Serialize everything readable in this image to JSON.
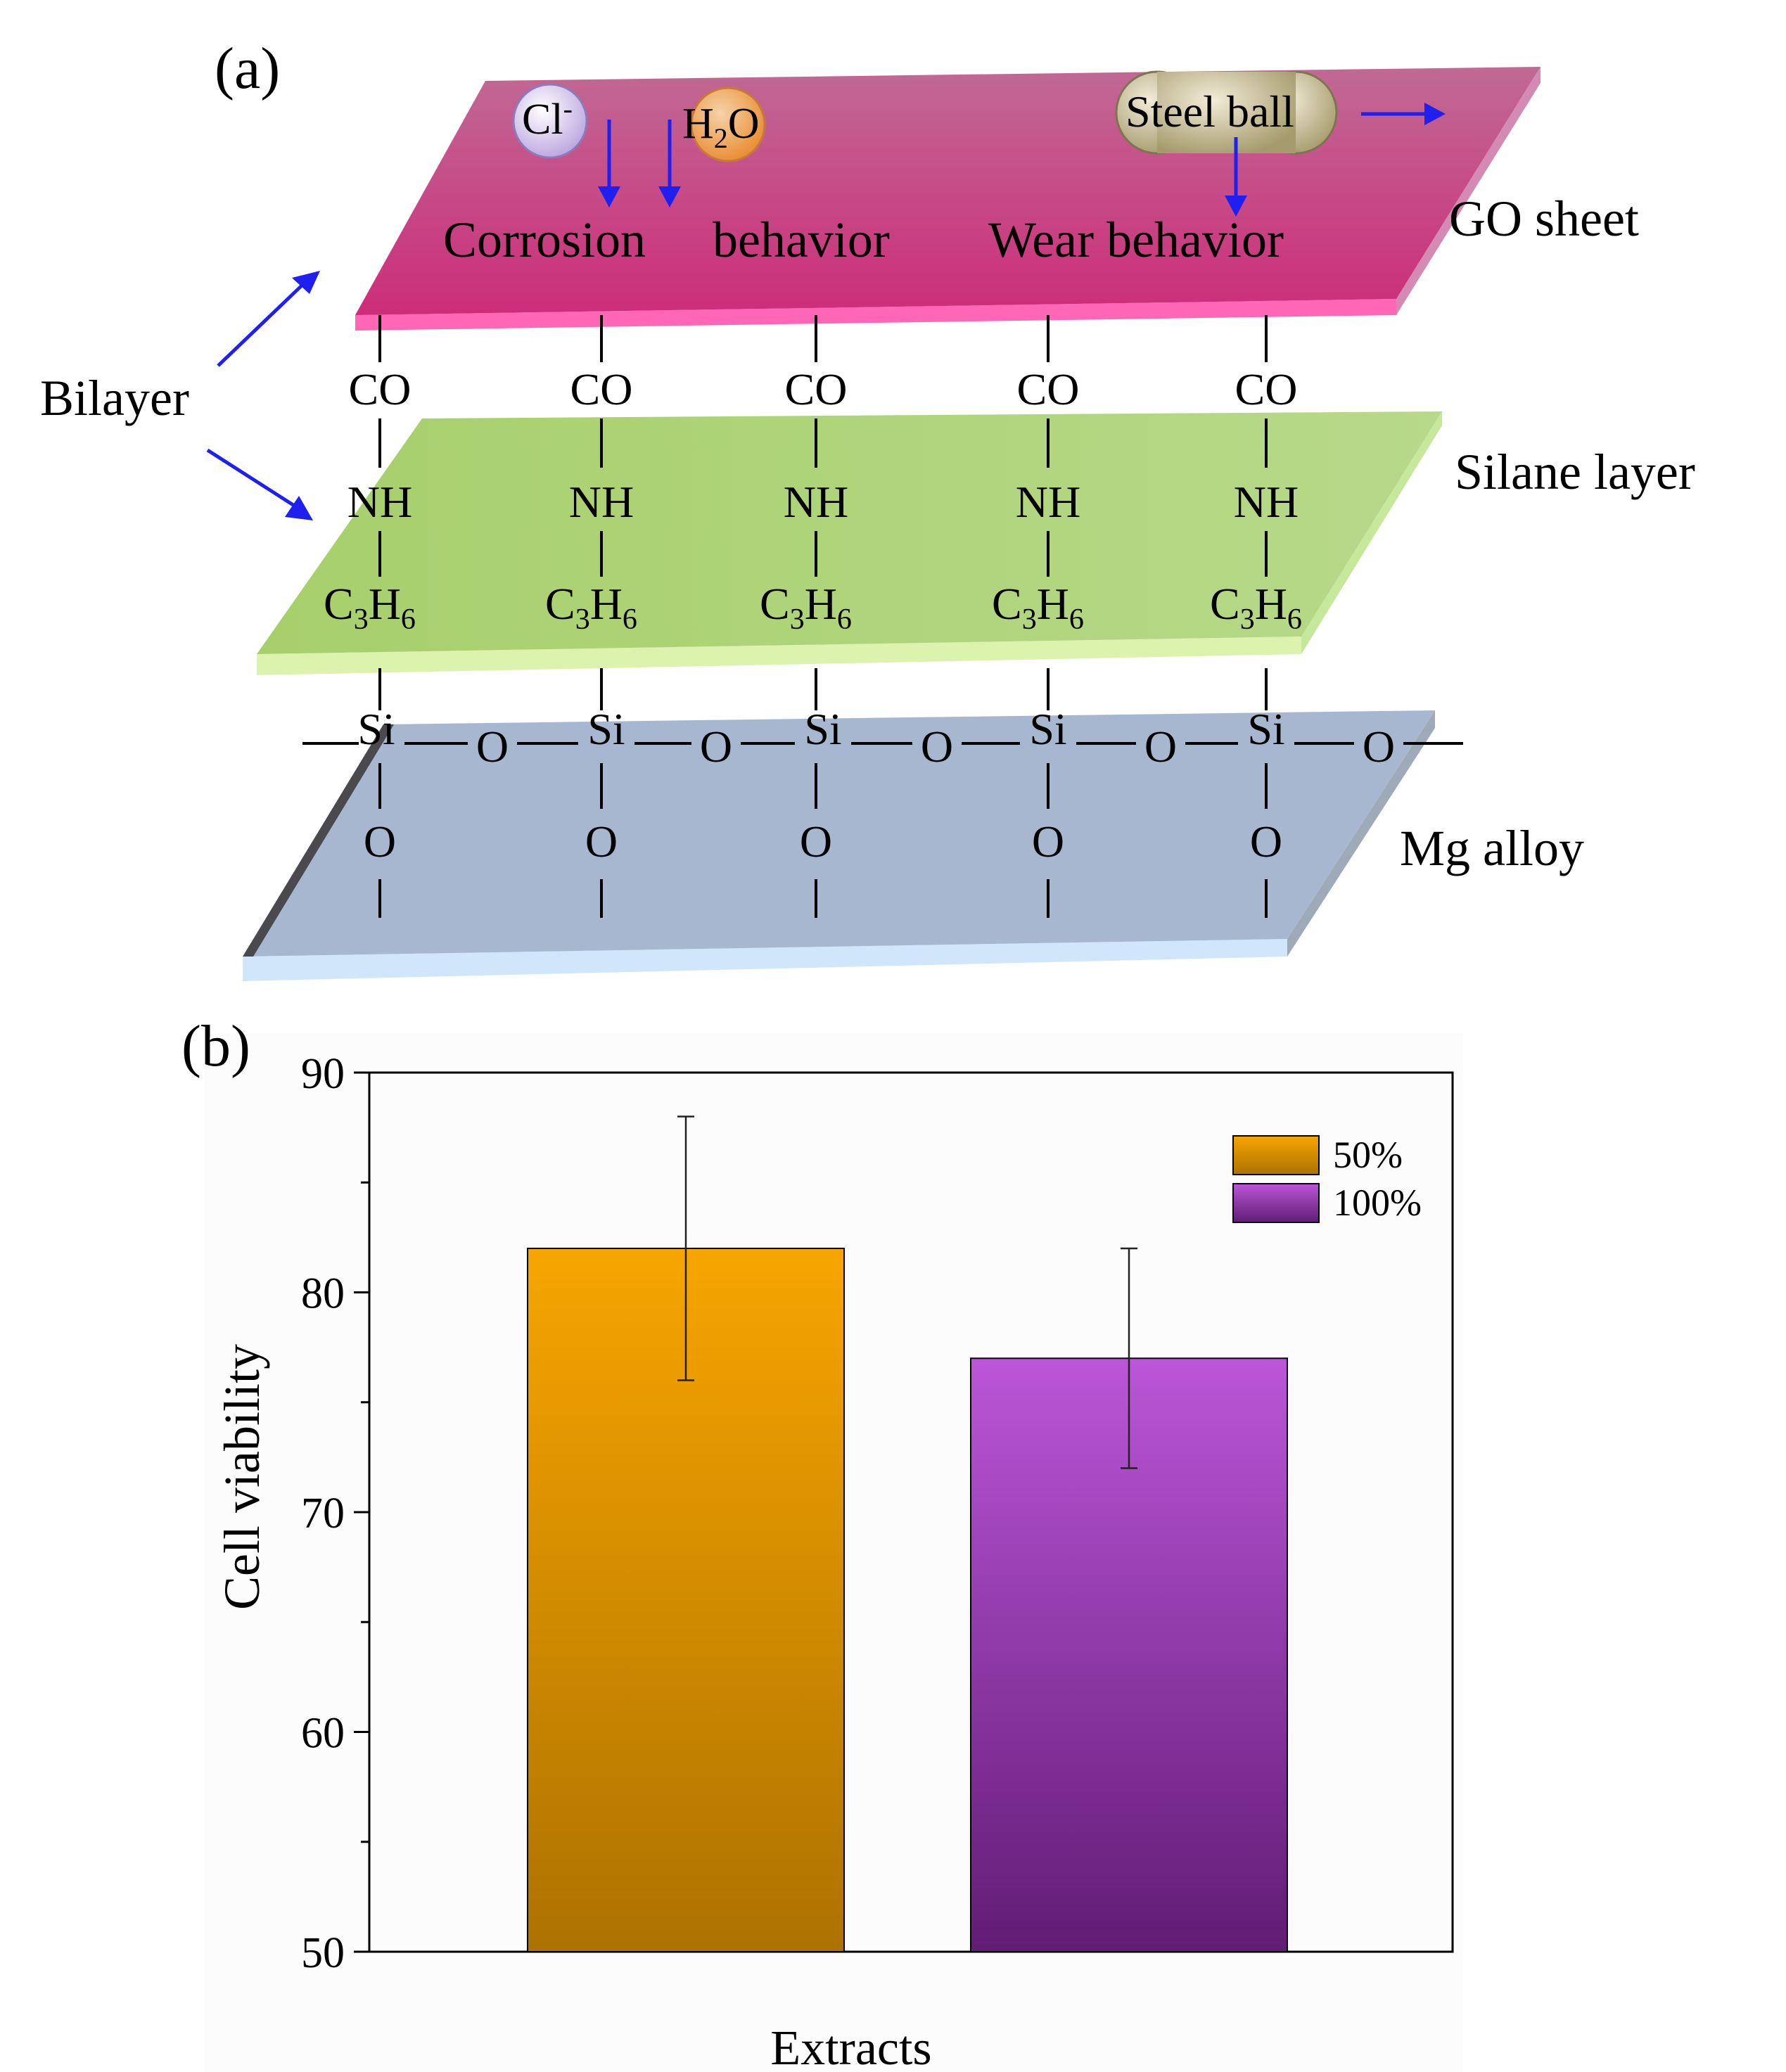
{
  "panel_a": {
    "label": "(a)",
    "layers": {
      "go_sheet": "GO sheet",
      "silane": "Silane layer",
      "mg_alloy": "Mg alloy"
    },
    "bilayer": "Bilayer",
    "behaviors": {
      "corrosion": "Corrosion",
      "corrosion_b": "behavior",
      "wear": "Wear behavior"
    },
    "species": {
      "chloride": "Cl",
      "chloride_charge": "-",
      "water_h": "H",
      "water_sub": "2",
      "water_o": "O",
      "steel_ball": "Steel ball"
    },
    "chain": {
      "co": "CO",
      "nh": "NH",
      "c": "C",
      "c_sub": "3",
      "h": "H",
      "h_sub": "6",
      "si": "Si",
      "o": "O"
    },
    "colors": {
      "go": "#c9407e",
      "silane": "#a7cf6b",
      "mg": "#a6b7cf",
      "arrow": "#1f1ff0"
    }
  },
  "panel_b": {
    "label": "(b)",
    "chart_data": {
      "type": "bar",
      "categories": [
        "50%",
        "100%"
      ],
      "values": [
        82,
        77
      ],
      "errors": [
        6,
        5
      ],
      "colors": [
        "#f5a400",
        "#b44fd6"
      ],
      "xlabel": "Extracts",
      "ylabel": "Cell viability",
      "ylim": [
        50,
        90
      ],
      "yticks": [
        50,
        60,
        70,
        80,
        90
      ],
      "legend": [
        "50%",
        "100%"
      ],
      "legend_position": "top-right"
    }
  }
}
